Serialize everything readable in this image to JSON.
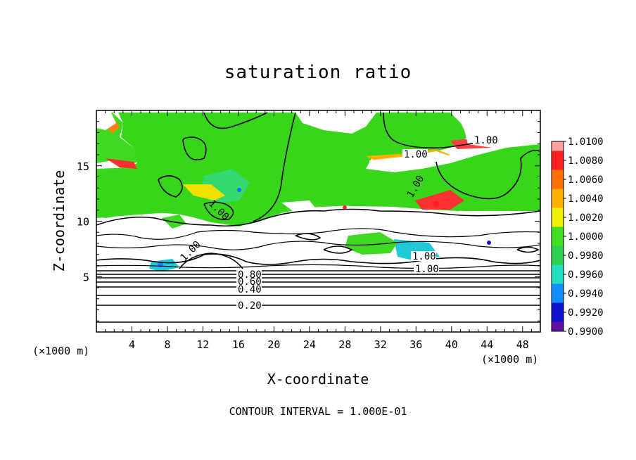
{
  "chart_data": {
    "type": "heatmap",
    "title": "saturation ratio",
    "xlabel": "X-coordinate",
    "ylabel": "Z-coordinate",
    "x_unit": "(×1000 m)",
    "xlim": [
      0,
      50
    ],
    "ylim": [
      0,
      20
    ],
    "x_ticks": [
      "4",
      "8",
      "12",
      "16",
      "20",
      "24",
      "28",
      "32",
      "36",
      "40",
      "44",
      "48"
    ],
    "y_ticks": [
      "5",
      "10",
      "15"
    ],
    "colorbar": {
      "labels": [
        "1.0100",
        "1.0080",
        "1.0060",
        "1.0040",
        "1.0020",
        "1.0000",
        "0.9980",
        "0.9960",
        "0.9940",
        "0.9920",
        "0.9900"
      ],
      "colors": [
        "#ffa0a0",
        "#ff2020",
        "#ff7000",
        "#ffb000",
        "#f0f000",
        "#40e020",
        "#30d050",
        "#20e0c0",
        "#1090ff",
        "#1010d0",
        "#6010a0"
      ],
      "range": [
        0.99,
        1.01
      ]
    },
    "contour_labels": [
      "1.00",
      "1.00",
      "1.00",
      "1.00",
      "1.00",
      "1.00",
      "1.00",
      "0.80",
      "0.60",
      "0.40",
      "0.20"
    ],
    "contour_interval": "CONTOUR INTERVAL = 1.000E-01",
    "grid": false
  }
}
